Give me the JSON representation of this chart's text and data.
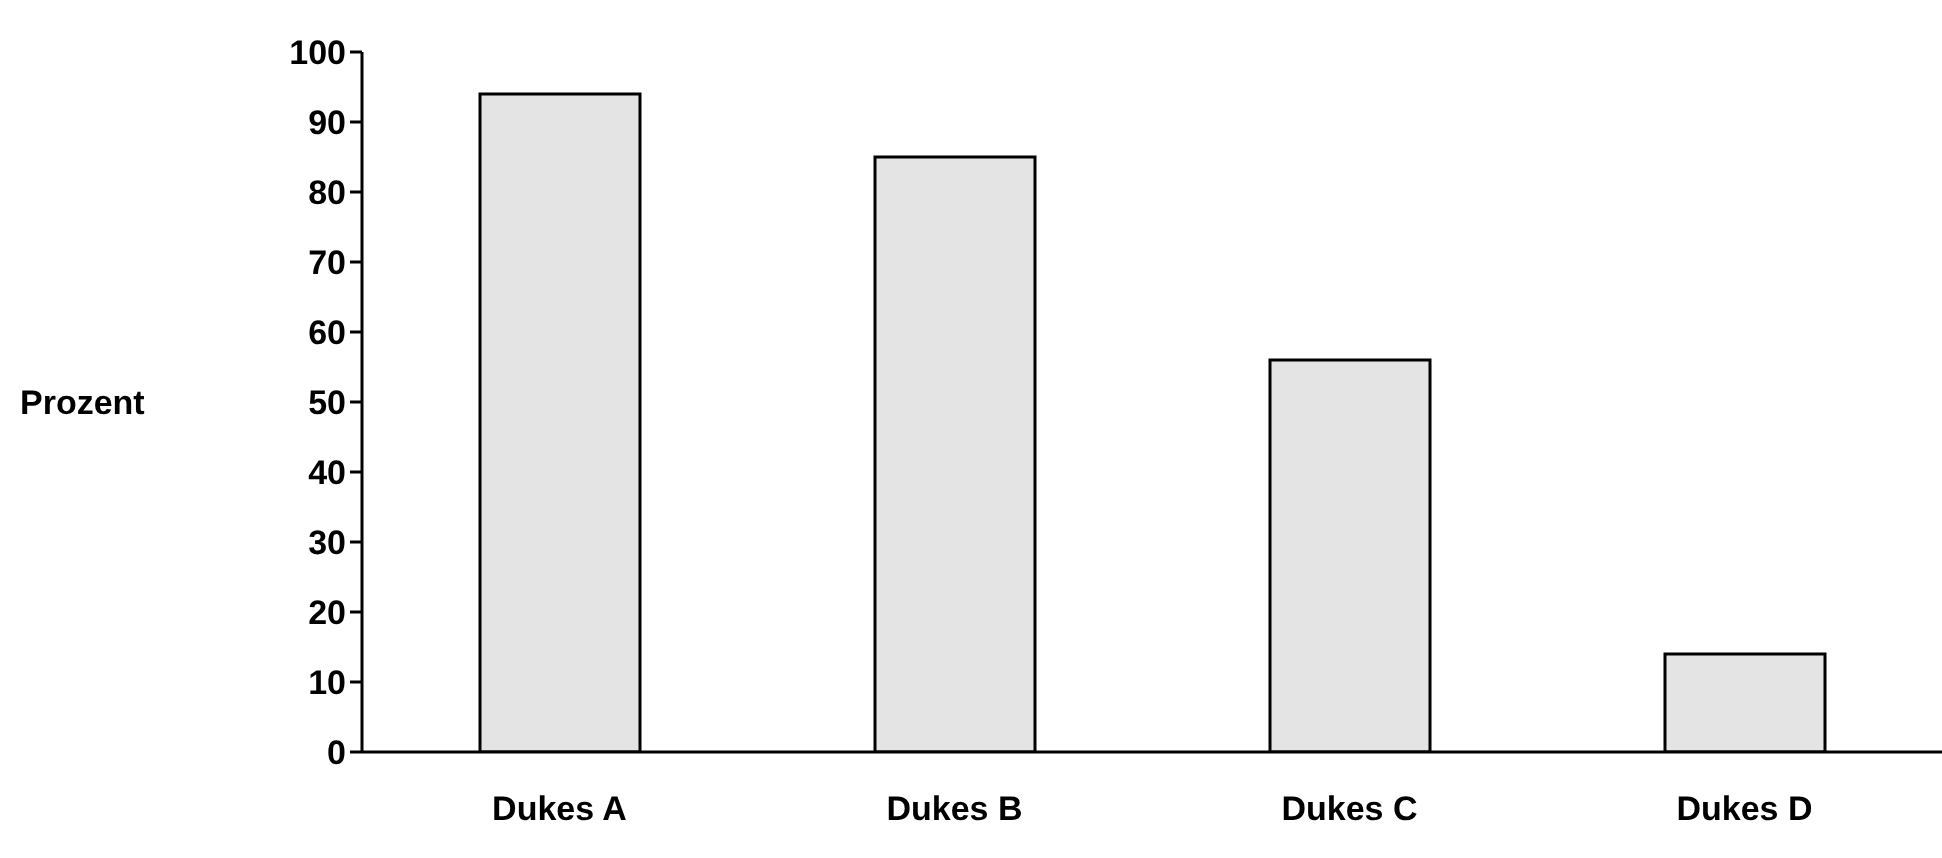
{
  "chart_data": {
    "type": "bar",
    "ylabel": "Prozent",
    "categories": [
      "Dukes A",
      "Dukes B",
      "Dukes C",
      "Dukes D"
    ],
    "values": [
      94,
      85,
      56,
      14
    ],
    "color": "#e4e4e4",
    "ylim": [
      0,
      100
    ],
    "yticks": [
      0,
      10,
      20,
      30,
      40,
      50,
      60,
      70,
      80,
      90,
      100
    ],
    "grid": false,
    "legend": false
  }
}
